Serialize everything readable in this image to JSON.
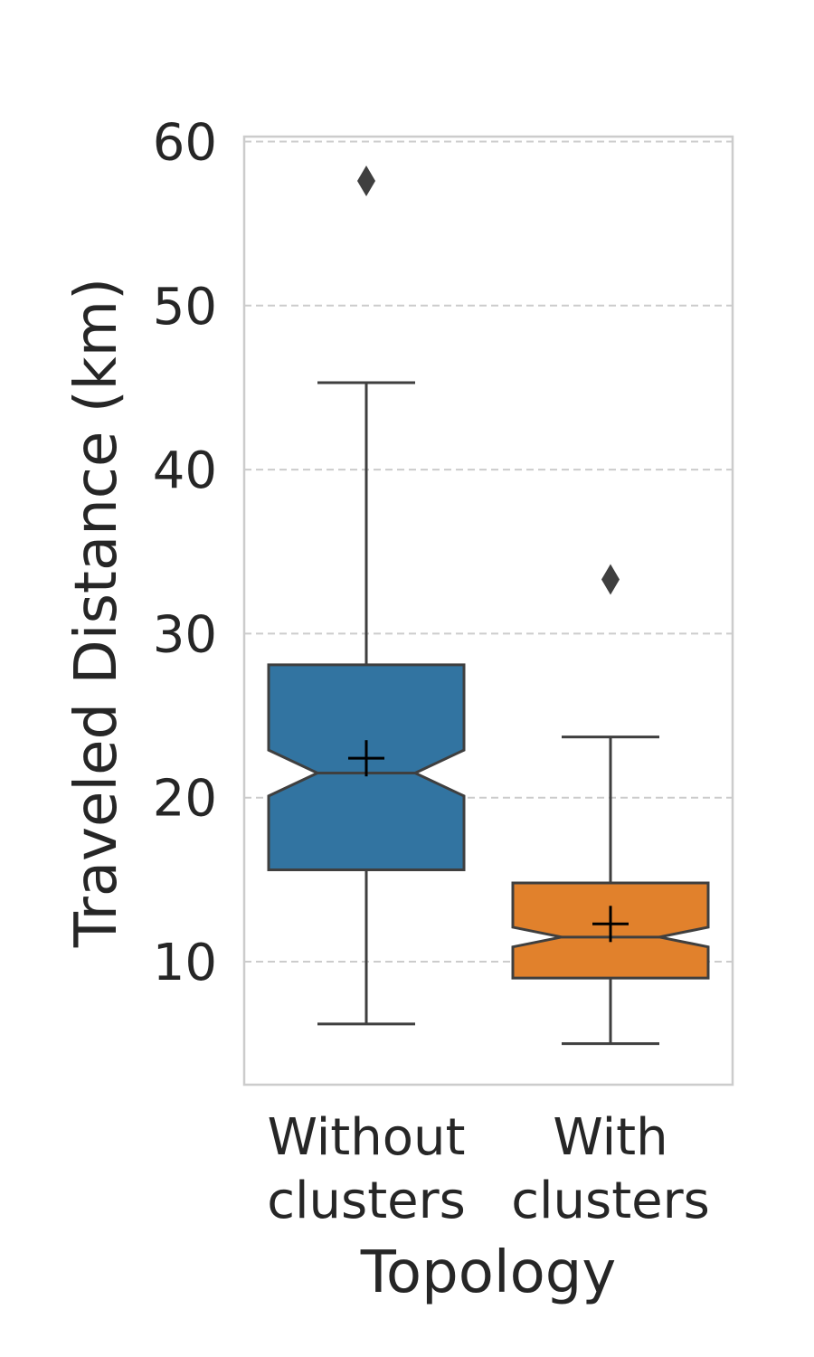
{
  "chart_data": {
    "type": "box",
    "notched": true,
    "show_means": true,
    "xlabel": "Topology",
    "ylabel": "Traveled Distance (km)",
    "ylim": [
      2.5,
      60.3
    ],
    "yticks": [
      10,
      20,
      30,
      40,
      50,
      60
    ],
    "grid": "y-dashed",
    "categories": [
      {
        "line1": "Without",
        "line2": "clusters"
      },
      {
        "line1": "With",
        "line2": "clusters"
      }
    ],
    "boxes": [
      {
        "whisker_low": 6.2,
        "q1": 15.6,
        "median": 21.5,
        "q3": 28.1,
        "whisker_high": 45.3,
        "notch_low": 20.1,
        "notch_high": 22.9,
        "mean": 22.4,
        "outliers": [
          57.6
        ],
        "color": "#3274a1"
      },
      {
        "whisker_low": 5.0,
        "q1": 9.0,
        "median": 11.5,
        "q3": 14.8,
        "whisker_high": 23.7,
        "notch_low": 10.9,
        "notch_high": 12.1,
        "mean": 12.3,
        "outliers": [
          33.3
        ],
        "color": "#e1812c"
      }
    ]
  }
}
